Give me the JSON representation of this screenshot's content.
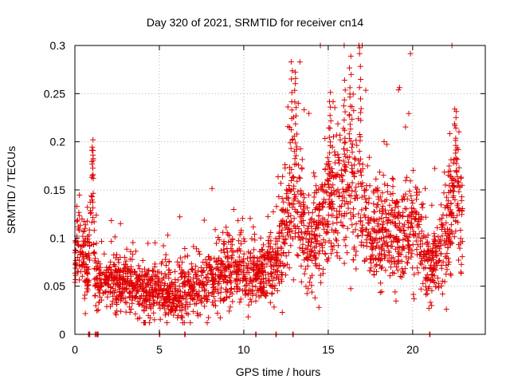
{
  "chart_data": {
    "type": "scatter",
    "title": "Day 320 of 2021, SRMTID for receiver cn14",
    "xlabel": "GPS time / hours",
    "ylabel": "SRMTID / TECUs",
    "xlim": [
      0,
      24.3
    ],
    "ylim": [
      0,
      0.3
    ],
    "x_ticks": [
      0,
      5,
      10,
      15,
      20
    ],
    "x_tick_labels": [
      "0",
      "5",
      "10",
      "15",
      "20"
    ],
    "y_ticks": [
      0,
      0.05,
      0.1,
      0.15,
      0.2,
      0.25,
      0.3
    ],
    "y_tick_labels": [
      "0",
      "0.05",
      "0.1",
      "0.15",
      "0.2",
      "0.25",
      "0.3"
    ],
    "grid": true,
    "marker": "plus",
    "color": "#e00000",
    "series": [
      {
        "name": "SRMTID",
        "trend": [
          {
            "t": 0.0,
            "center": 0.08,
            "spread": 0.025
          },
          {
            "t": 0.3,
            "center": 0.09,
            "spread": 0.03
          },
          {
            "t": 0.8,
            "center": 0.06,
            "spread": 0.02
          },
          {
            "t": 1.0,
            "center": 0.17,
            "spread": 0.03
          },
          {
            "t": 1.2,
            "center": 0.06,
            "spread": 0.02
          },
          {
            "t": 2.0,
            "center": 0.055,
            "spread": 0.02
          },
          {
            "t": 3.0,
            "center": 0.055,
            "spread": 0.018
          },
          {
            "t": 4.0,
            "center": 0.045,
            "spread": 0.018
          },
          {
            "t": 5.0,
            "center": 0.045,
            "spread": 0.018
          },
          {
            "t": 6.0,
            "center": 0.04,
            "spread": 0.018
          },
          {
            "t": 7.0,
            "center": 0.05,
            "spread": 0.02
          },
          {
            "t": 8.0,
            "center": 0.055,
            "spread": 0.02
          },
          {
            "t": 9.0,
            "center": 0.07,
            "spread": 0.025
          },
          {
            "t": 10.0,
            "center": 0.065,
            "spread": 0.025
          },
          {
            "t": 11.0,
            "center": 0.06,
            "spread": 0.02
          },
          {
            "t": 12.0,
            "center": 0.075,
            "spread": 0.03
          },
          {
            "t": 12.5,
            "center": 0.12,
            "spread": 0.04
          },
          {
            "t": 13.0,
            "center": 0.15,
            "spread": 0.06
          },
          {
            "t": 13.5,
            "center": 0.11,
            "spread": 0.04
          },
          {
            "t": 14.0,
            "center": 0.09,
            "spread": 0.035
          },
          {
            "t": 15.0,
            "center": 0.13,
            "spread": 0.045
          },
          {
            "t": 16.0,
            "center": 0.15,
            "spread": 0.05
          },
          {
            "t": 16.7,
            "center": 0.16,
            "spread": 0.055
          },
          {
            "t": 17.5,
            "center": 0.1,
            "spread": 0.035
          },
          {
            "t": 18.5,
            "center": 0.11,
            "spread": 0.035
          },
          {
            "t": 19.5,
            "center": 0.1,
            "spread": 0.035
          },
          {
            "t": 20.0,
            "center": 0.12,
            "spread": 0.04
          },
          {
            "t": 21.0,
            "center": 0.07,
            "spread": 0.025
          },
          {
            "t": 22.0,
            "center": 0.1,
            "spread": 0.04
          },
          {
            "t": 22.5,
            "center": 0.16,
            "spread": 0.045
          },
          {
            "t": 22.9,
            "center": 0.12,
            "spread": 0.03
          }
        ],
        "peaks": [
          {
            "x": 1.05,
            "y": 0.2
          },
          {
            "x": 12.85,
            "y": 0.285
          },
          {
            "x": 13.05,
            "y": 0.27
          },
          {
            "x": 15.1,
            "y": 0.25
          },
          {
            "x": 15.95,
            "y": 0.262
          },
          {
            "x": 16.3,
            "y": 0.287
          },
          {
            "x": 16.9,
            "y": 0.3
          },
          {
            "x": 22.55,
            "y": 0.235
          }
        ],
        "zero_points": [
          0.8,
          0.85,
          1.2,
          1.3,
          1.35,
          5.0,
          6.5,
          10.7,
          11.9,
          12.9,
          21.0
        ]
      }
    ]
  }
}
